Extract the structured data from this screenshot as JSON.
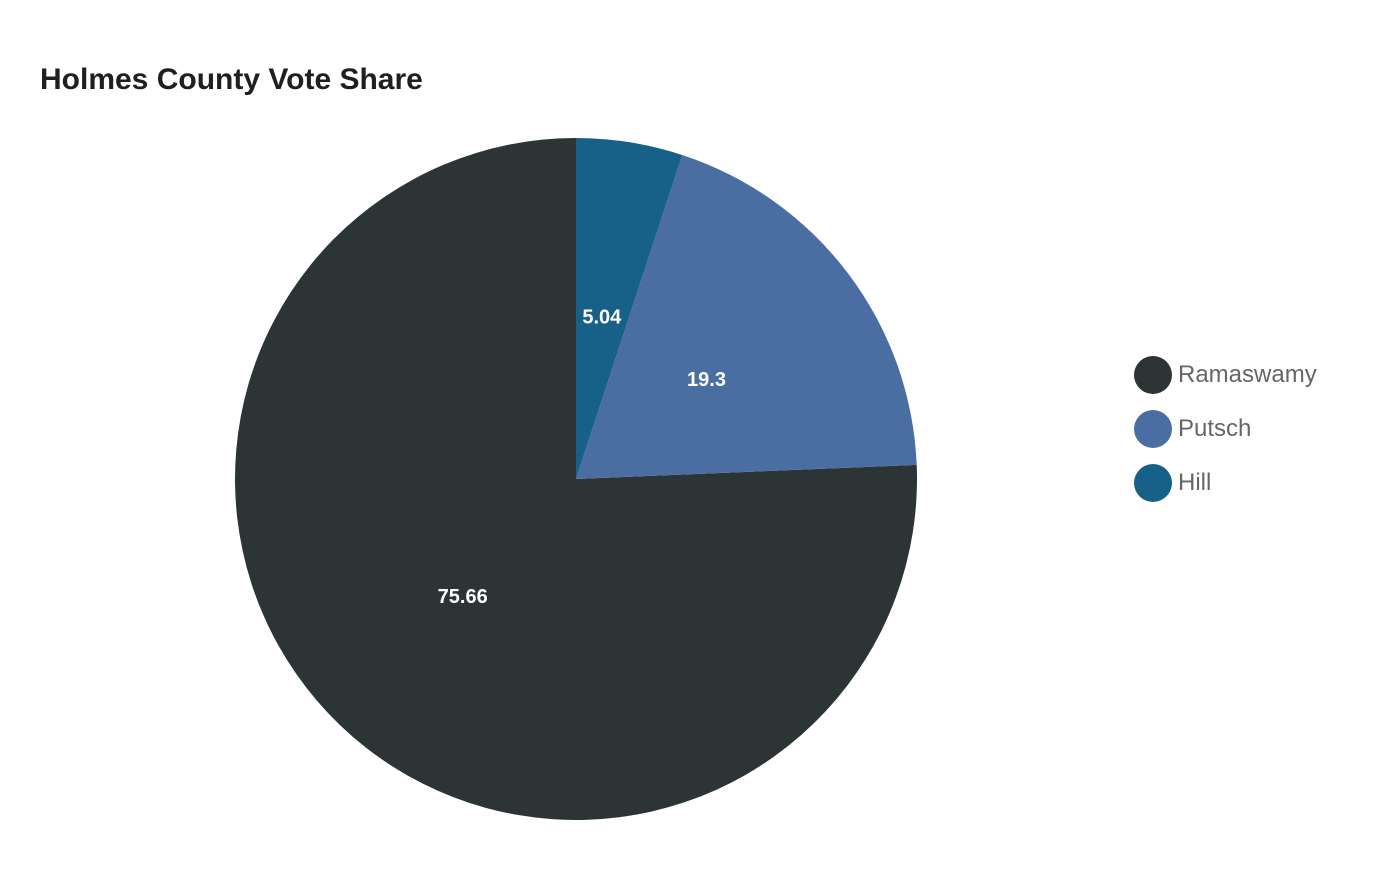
{
  "chart_data": {
    "type": "pie",
    "title": "Holmes County Vote Share",
    "legend_position": "right",
    "slices": [
      {
        "name": "Ramaswamy",
        "value": 75.66,
        "label": "75.66",
        "color": "#2d3436"
      },
      {
        "name": "Putsch",
        "value": 19.3,
        "label": "19.3",
        "color": "#4a6da2"
      },
      {
        "name": "Hill",
        "value": 5.04,
        "label": "5.04",
        "color": "#176087"
      }
    ]
  }
}
